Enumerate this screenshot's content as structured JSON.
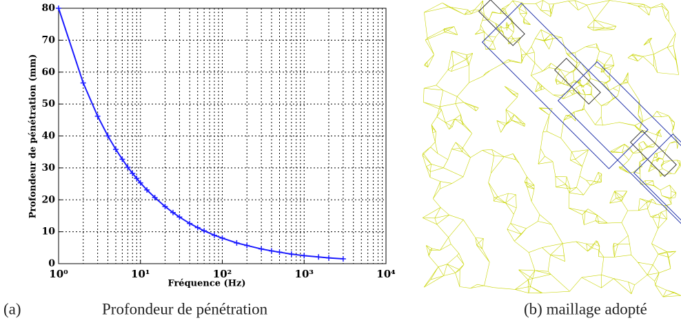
{
  "chart_data": {
    "type": "line",
    "x_label": "Fréquence (Hz)",
    "y_label": "Profondeur de pénétration (mm)",
    "x": [
      1,
      2,
      3,
      4,
      5,
      6,
      7,
      8,
      9,
      10,
      12,
      15,
      20,
      25,
      30,
      40,
      50,
      60,
      80,
      100,
      150,
      200,
      300,
      400,
      500,
      700,
      1000,
      1500,
      2000,
      3000
    ],
    "series": [
      {
        "name": "Profondeur",
        "color": "#1a1aff",
        "values": [
          80,
          56.6,
          46.2,
          40,
          35.8,
          32.7,
          30.2,
          28.3,
          26.7,
          25.3,
          23.1,
          20.7,
          17.9,
          16,
          14.6,
          12.6,
          11.3,
          10.3,
          8.9,
          8,
          6.5,
          5.7,
          4.6,
          4,
          3.6,
          3,
          2.5,
          2.1,
          1.8,
          1.5
        ]
      }
    ],
    "xscale": "log",
    "xlim": [
      1,
      10000
    ],
    "ylim": [
      0,
      80
    ],
    "xticks": [
      {
        "value": 1,
        "label": "10⁰"
      },
      {
        "value": 10,
        "label": "10¹"
      },
      {
        "value": 100,
        "label": "10²"
      },
      {
        "value": 1000,
        "label": "10³"
      },
      {
        "value": 10000,
        "label": "10⁴"
      }
    ],
    "yticks": [
      0,
      10,
      20,
      30,
      40,
      50,
      60,
      70,
      80
    ],
    "grid": true
  },
  "captions": {
    "a_label": "(a)",
    "a_text": "Profondeur de pénétration",
    "b_text": "(b) maillage adopté"
  }
}
